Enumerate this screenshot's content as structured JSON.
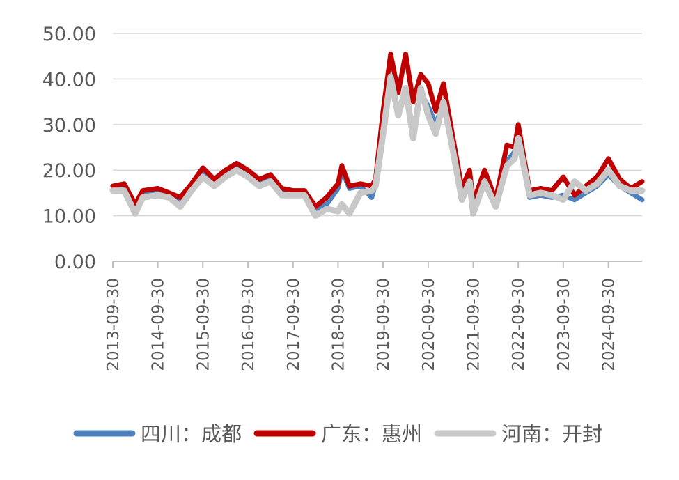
{
  "chart_data": {
    "type": "line",
    "title": "",
    "xlabel": "",
    "ylabel": "",
    "x_start": "2013-09-30",
    "x_end": "2025-06-30",
    "x_ticks": [
      "2013-09-30",
      "2014-09-30",
      "2015-09-30",
      "2016-09-30",
      "2017-09-30",
      "2018-09-30",
      "2019-09-30",
      "2020-09-30",
      "2021-09-30",
      "2022-09-30",
      "2023-09-30",
      "2024-09-30"
    ],
    "ylim": [
      0,
      50
    ],
    "y_ticks": [
      "0.00",
      "10.00",
      "20.00",
      "30.00",
      "40.00",
      "50.00"
    ],
    "y_tick_values": [
      0,
      10,
      20,
      30,
      40,
      50
    ],
    "grid": true,
    "legend_position": "bottom",
    "series": [
      {
        "name": "四川：成都",
        "color": "#4f81bd",
        "points": [
          [
            "2013-09-30",
            16.5
          ],
          [
            "2013-12-31",
            16.2
          ],
          [
            "2014-03-31",
            11.8
          ],
          [
            "2014-05-31",
            14.5
          ],
          [
            "2014-09-30",
            15.5
          ],
          [
            "2014-12-31",
            14.8
          ],
          [
            "2015-03-31",
            13.5
          ],
          [
            "2015-06-30",
            16.5
          ],
          [
            "2015-09-30",
            19.5
          ],
          [
            "2015-12-31",
            17.5
          ],
          [
            "2016-03-31",
            19.5
          ],
          [
            "2016-06-30",
            20.5
          ],
          [
            "2016-09-30",
            19.0
          ],
          [
            "2016-12-31",
            17.5
          ],
          [
            "2017-03-31",
            18.5
          ],
          [
            "2017-06-30",
            15.5
          ],
          [
            "2017-09-30",
            15.0
          ],
          [
            "2017-12-31",
            15.5
          ],
          [
            "2018-03-31",
            11.5
          ],
          [
            "2018-06-30",
            12.5
          ],
          [
            "2018-09-30",
            16.0
          ],
          [
            "2018-10-31",
            20.0
          ],
          [
            "2018-12-31",
            16.0
          ],
          [
            "2019-03-31",
            16.5
          ],
          [
            "2019-06-30",
            14.0
          ],
          [
            "2019-07-31",
            17.0
          ],
          [
            "2019-09-30",
            30.0
          ],
          [
            "2019-11-30",
            40.0
          ],
          [
            "2020-01-31",
            33.0
          ],
          [
            "2020-03-31",
            36.0
          ],
          [
            "2020-05-31",
            29.0
          ],
          [
            "2020-07-31",
            37.0
          ],
          [
            "2020-09-30",
            34.0
          ],
          [
            "2020-11-30",
            30.0
          ],
          [
            "2021-01-31",
            35.0
          ],
          [
            "2021-03-31",
            28.0
          ],
          [
            "2021-06-30",
            14.0
          ],
          [
            "2021-08-31",
            17.0
          ],
          [
            "2021-09-30",
            12.0
          ],
          [
            "2021-12-31",
            17.0
          ],
          [
            "2022-03-31",
            12.5
          ],
          [
            "2022-06-30",
            22.0
          ],
          [
            "2022-08-31",
            24.0
          ],
          [
            "2022-09-30",
            27.5
          ],
          [
            "2022-12-31",
            14.0
          ],
          [
            "2023-03-31",
            14.5
          ],
          [
            "2023-06-30",
            14.0
          ],
          [
            "2023-09-30",
            14.5
          ],
          [
            "2023-12-31",
            13.5
          ],
          [
            "2024-03-31",
            15.0
          ],
          [
            "2024-06-30",
            16.5
          ],
          [
            "2024-09-30",
            19.0
          ],
          [
            "2024-12-31",
            16.5
          ],
          [
            "2025-03-31",
            15.0
          ],
          [
            "2025-06-30",
            13.5
          ]
        ]
      },
      {
        "name": "广东：惠州",
        "color": "#c00000",
        "points": [
          [
            "2013-09-30",
            16.5
          ],
          [
            "2013-12-31",
            17.0
          ],
          [
            "2014-03-31",
            12.5
          ],
          [
            "2014-05-31",
            15.5
          ],
          [
            "2014-09-30",
            16.0
          ],
          [
            "2014-12-31",
            15.0
          ],
          [
            "2015-03-31",
            14.0
          ],
          [
            "2015-06-30",
            17.0
          ],
          [
            "2015-09-30",
            20.5
          ],
          [
            "2015-12-31",
            18.0
          ],
          [
            "2016-03-31",
            20.0
          ],
          [
            "2016-06-30",
            21.5
          ],
          [
            "2016-09-30",
            20.0
          ],
          [
            "2016-12-31",
            18.0
          ],
          [
            "2017-03-31",
            19.0
          ],
          [
            "2017-06-30",
            16.0
          ],
          [
            "2017-09-30",
            15.5
          ],
          [
            "2017-12-31",
            15.5
          ],
          [
            "2018-03-31",
            12.0
          ],
          [
            "2018-06-30",
            14.0
          ],
          [
            "2018-09-30",
            17.0
          ],
          [
            "2018-10-31",
            21.0
          ],
          [
            "2018-12-31",
            16.5
          ],
          [
            "2019-03-31",
            17.0
          ],
          [
            "2019-06-30",
            16.5
          ],
          [
            "2019-07-31",
            18.0
          ],
          [
            "2019-09-30",
            33.0
          ],
          [
            "2019-11-30",
            45.5
          ],
          [
            "2020-01-31",
            37.0
          ],
          [
            "2020-03-31",
            45.5
          ],
          [
            "2020-05-31",
            35.0
          ],
          [
            "2020-07-31",
            41.0
          ],
          [
            "2020-09-30",
            39.0
          ],
          [
            "2020-11-30",
            33.0
          ],
          [
            "2021-01-31",
            39.0
          ],
          [
            "2021-03-31",
            30.0
          ],
          [
            "2021-06-30",
            16.0
          ],
          [
            "2021-08-31",
            20.0
          ],
          [
            "2021-09-30",
            13.0
          ],
          [
            "2021-12-31",
            20.0
          ],
          [
            "2022-03-31",
            13.5
          ],
          [
            "2022-06-30",
            25.5
          ],
          [
            "2022-08-31",
            25.0
          ],
          [
            "2022-09-30",
            30.0
          ],
          [
            "2022-12-31",
            15.5
          ],
          [
            "2023-03-31",
            16.0
          ],
          [
            "2023-06-30",
            15.5
          ],
          [
            "2023-09-30",
            18.5
          ],
          [
            "2023-12-31",
            14.5
          ],
          [
            "2024-03-31",
            16.5
          ],
          [
            "2024-06-30",
            18.5
          ],
          [
            "2024-09-30",
            22.5
          ],
          [
            "2024-12-31",
            18.0
          ],
          [
            "2025-03-31",
            16.0
          ],
          [
            "2025-06-30",
            17.5
          ]
        ]
      },
      {
        "name": "河南：开封",
        "color": "#c8c8c8",
        "points": [
          [
            "2013-09-30",
            15.5
          ],
          [
            "2013-12-31",
            15.5
          ],
          [
            "2014-03-31",
            10.5
          ],
          [
            "2014-05-31",
            14.0
          ],
          [
            "2014-09-30",
            14.5
          ],
          [
            "2014-12-31",
            14.0
          ],
          [
            "2015-03-31",
            12.0
          ],
          [
            "2015-06-30",
            15.5
          ],
          [
            "2015-09-30",
            18.5
          ],
          [
            "2015-12-31",
            16.5
          ],
          [
            "2016-03-31",
            18.5
          ],
          [
            "2016-06-30",
            20.0
          ],
          [
            "2016-09-30",
            18.5
          ],
          [
            "2016-12-31",
            16.5
          ],
          [
            "2017-03-31",
            17.5
          ],
          [
            "2017-06-30",
            14.5
          ],
          [
            "2017-09-30",
            14.5
          ],
          [
            "2017-12-31",
            14.5
          ],
          [
            "2018-03-31",
            10.0
          ],
          [
            "2018-06-30",
            11.5
          ],
          [
            "2018-09-30",
            11.0
          ],
          [
            "2018-10-31",
            12.5
          ],
          [
            "2018-12-31",
            10.5
          ],
          [
            "2019-03-31",
            15.0
          ],
          [
            "2019-06-30",
            15.5
          ],
          [
            "2019-07-31",
            16.5
          ],
          [
            "2019-09-30",
            28.0
          ],
          [
            "2019-11-30",
            40.5
          ],
          [
            "2020-01-31",
            32.0
          ],
          [
            "2020-03-31",
            38.0
          ],
          [
            "2020-05-31",
            27.0
          ],
          [
            "2020-07-31",
            38.0
          ],
          [
            "2020-09-30",
            32.0
          ],
          [
            "2020-11-30",
            28.0
          ],
          [
            "2021-01-31",
            35.0
          ],
          [
            "2021-03-31",
            27.0
          ],
          [
            "2021-06-30",
            13.5
          ],
          [
            "2021-08-31",
            17.5
          ],
          [
            "2021-09-30",
            10.5
          ],
          [
            "2021-12-31",
            17.5
          ],
          [
            "2022-03-31",
            12.0
          ],
          [
            "2022-06-30",
            21.0
          ],
          [
            "2022-08-31",
            22.5
          ],
          [
            "2022-09-30",
            27.0
          ],
          [
            "2022-12-31",
            14.5
          ],
          [
            "2023-03-31",
            15.0
          ],
          [
            "2023-06-30",
            14.5
          ],
          [
            "2023-09-30",
            13.5
          ],
          [
            "2023-12-31",
            17.5
          ],
          [
            "2024-03-31",
            15.5
          ],
          [
            "2024-06-30",
            17.0
          ],
          [
            "2024-09-30",
            20.0
          ],
          [
            "2024-12-31",
            16.5
          ],
          [
            "2025-03-31",
            15.5
          ],
          [
            "2025-06-30",
            15.5
          ]
        ]
      }
    ]
  },
  "colors": {
    "grid": "#d9d9d9",
    "axis": "#bfbfbf",
    "tick_text": "#595959"
  }
}
